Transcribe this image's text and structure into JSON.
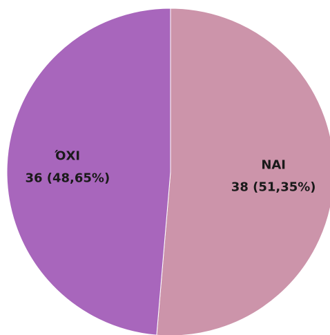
{
  "chart_data": {
    "type": "pie",
    "categories": [
      "ΝΑΙ",
      "ΌΧΙ"
    ],
    "values": [
      38,
      36
    ],
    "value_labels": [
      "38 (51,35%)",
      "36 (48,65%)"
    ],
    "colors": [
      "#cc94aa",
      "#a866bc"
    ]
  }
}
